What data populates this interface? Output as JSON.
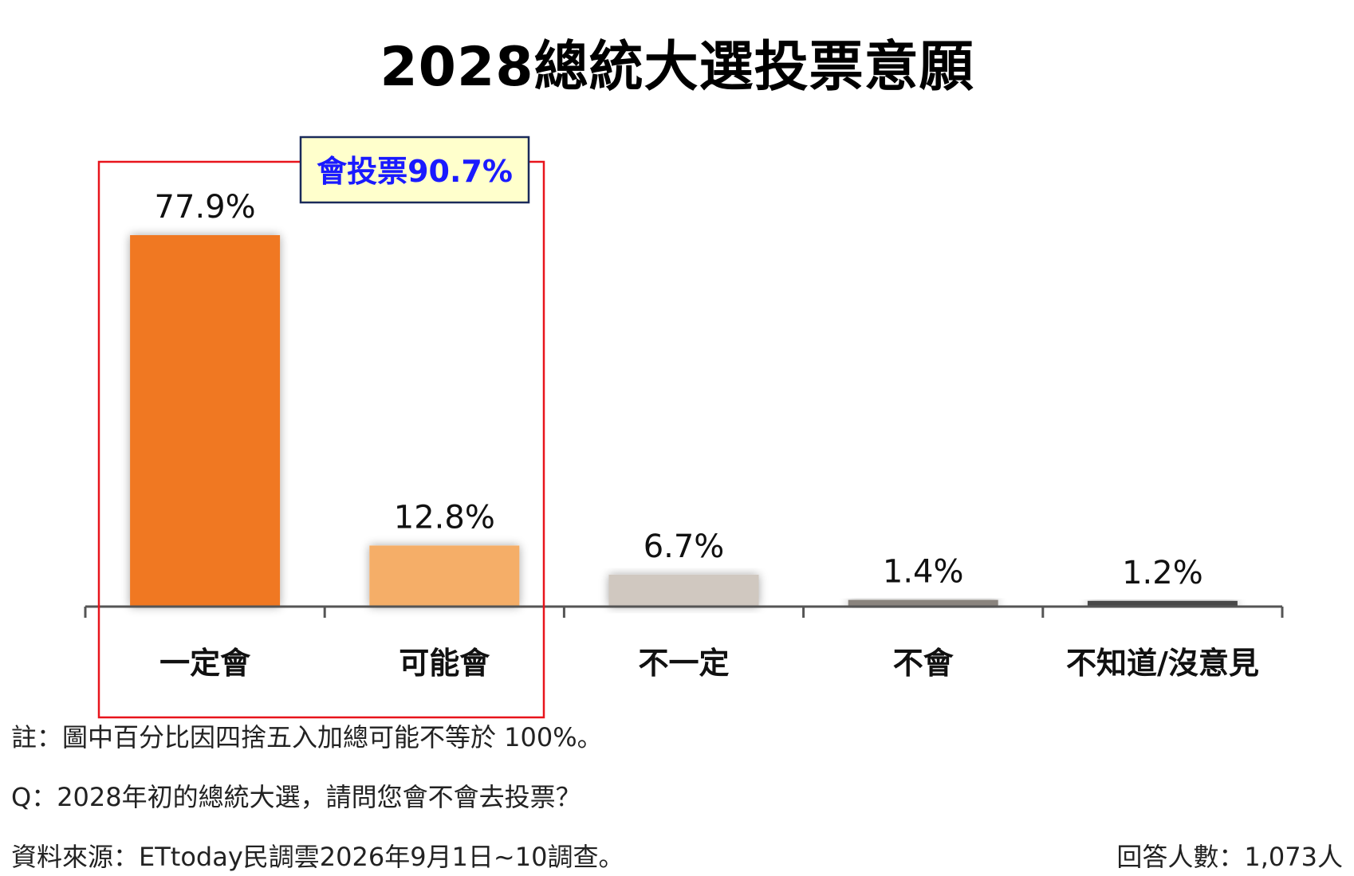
{
  "chart_data": {
    "type": "bar",
    "title": "2028總統大選投票意願",
    "categories": [
      "一定會",
      "可能會",
      "不一定",
      "不會",
      "不知道/沒意見"
    ],
    "values": [
      77.9,
      12.8,
      6.7,
      1.4,
      1.2
    ],
    "value_labels": [
      "77.9%",
      "12.8%",
      "6.7%",
      "1.4%",
      "1.2%"
    ],
    "bar_colors": [
      "#f07820",
      "#f5ae68",
      "#d0c8c0",
      "#8a847e",
      "#4a4a4a"
    ],
    "unit": "%",
    "grid": false,
    "legend": "none",
    "ylim": [
      0,
      80
    ],
    "annotation": {
      "text": "會投票90.7%",
      "covers_categories": [
        "一定會",
        "可能會"
      ],
      "box_color": "#e8141c",
      "label_bg": "#ffffcc",
      "label_border": "#1a2a5a",
      "text_color": "#1a1aff"
    }
  },
  "footer": {
    "note": "註：圖中百分比因四捨五入加總可能不等於 100%。",
    "question": "Q：2028年初的總統大選，請問您會不會去投票？",
    "source": "資料來源：ETtoday民調雲2026年9月1日~10調查。",
    "sample": "回答人數：1,073人"
  }
}
